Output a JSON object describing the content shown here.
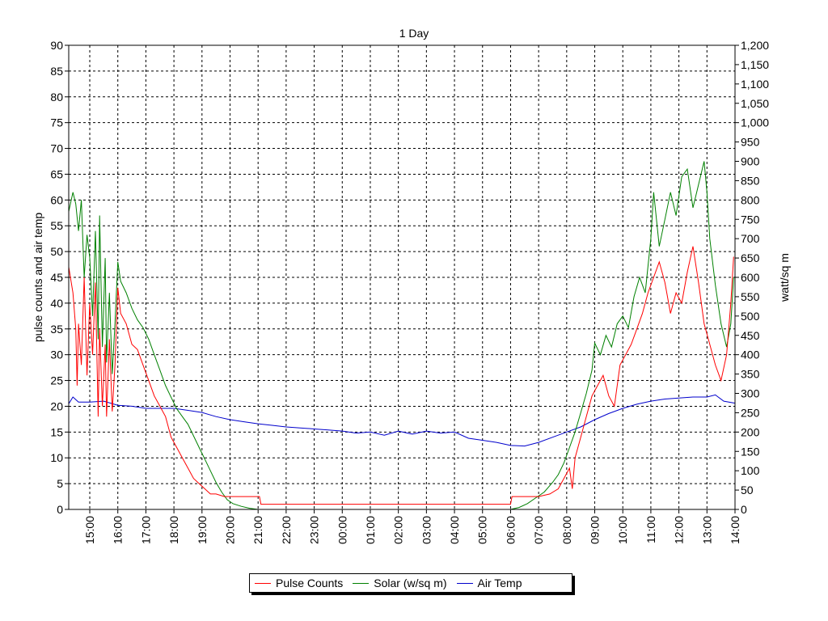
{
  "chart_data": {
    "type": "line",
    "title": "1 Day",
    "ylabel": "pulse counts and air temp",
    "y2label": "watt/sq m",
    "ylim": [
      0,
      90
    ],
    "y2lim": [
      0,
      1200
    ],
    "yticks": [
      "0",
      "5",
      "10",
      "15",
      "20",
      "25",
      "30",
      "35",
      "40",
      "45",
      "50",
      "55",
      "60",
      "65",
      "70",
      "75",
      "80",
      "85",
      "90"
    ],
    "y2ticks": [
      "0",
      "50",
      "100",
      "150",
      "200",
      "250",
      "300",
      "350",
      "400",
      "450",
      "500",
      "550",
      "600",
      "650",
      "700",
      "750",
      "800",
      "850",
      "900",
      "950",
      "1,000",
      "1,050",
      "1,100",
      "1,150",
      "1,200"
    ],
    "xlim": [
      14.25,
      38.0
    ],
    "xticks": [
      {
        "x": 15,
        "label": "15:00"
      },
      {
        "x": 16,
        "label": "16:00"
      },
      {
        "x": 17,
        "label": "17:00"
      },
      {
        "x": 18,
        "label": "18:00"
      },
      {
        "x": 19,
        "label": "19:00"
      },
      {
        "x": 20,
        "label": "20:00"
      },
      {
        "x": 21,
        "label": "21:00"
      },
      {
        "x": 22,
        "label": "22:00"
      },
      {
        "x": 23,
        "label": "23:00"
      },
      {
        "x": 24,
        "label": "00:00"
      },
      {
        "x": 25,
        "label": "01:00"
      },
      {
        "x": 26,
        "label": "02:00"
      },
      {
        "x": 27,
        "label": "03:00"
      },
      {
        "x": 28,
        "label": "04:00"
      },
      {
        "x": 29,
        "label": "05:00"
      },
      {
        "x": 30,
        "label": "06:00"
      },
      {
        "x": 31,
        "label": "07:00"
      },
      {
        "x": 32,
        "label": "08:00"
      },
      {
        "x": 33,
        "label": "09:00"
      },
      {
        "x": 34,
        "label": "10:00"
      },
      {
        "x": 35,
        "label": "11:00"
      },
      {
        "x": 36,
        "label": "12:00"
      },
      {
        "x": 37,
        "label": "13:00"
      },
      {
        "x": 38,
        "label": "14:00"
      }
    ],
    "grid": true,
    "legend_position": "bottom",
    "series": [
      {
        "name": "Pulse Counts",
        "color": "#ff0000",
        "axis": "left",
        "points": [
          [
            14.25,
            47
          ],
          [
            14.4,
            42
          ],
          [
            14.5,
            35
          ],
          [
            14.55,
            24
          ],
          [
            14.6,
            36
          ],
          [
            14.7,
            28
          ],
          [
            14.8,
            45
          ],
          [
            14.9,
            26
          ],
          [
            15.0,
            40
          ],
          [
            15.1,
            30
          ],
          [
            15.2,
            44
          ],
          [
            15.3,
            18
          ],
          [
            15.35,
            35
          ],
          [
            15.45,
            20
          ],
          [
            15.55,
            32
          ],
          [
            15.6,
            18
          ],
          [
            15.7,
            33
          ],
          [
            15.8,
            19
          ],
          [
            15.9,
            28
          ],
          [
            16.0,
            43
          ],
          [
            16.1,
            38
          ],
          [
            16.3,
            36
          ],
          [
            16.5,
            32
          ],
          [
            16.7,
            31
          ],
          [
            16.9,
            28
          ],
          [
            17.1,
            25
          ],
          [
            17.3,
            22
          ],
          [
            17.5,
            20
          ],
          [
            17.7,
            18
          ],
          [
            17.9,
            14
          ],
          [
            18.1,
            12
          ],
          [
            18.3,
            10
          ],
          [
            18.5,
            8
          ],
          [
            18.7,
            6
          ],
          [
            18.9,
            5
          ],
          [
            19.1,
            4
          ],
          [
            19.3,
            3
          ],
          [
            19.5,
            3
          ],
          [
            19.8,
            2.5
          ],
          [
            20.2,
            2.5
          ],
          [
            20.6,
            2.5
          ],
          [
            21.05,
            2.5
          ],
          [
            21.1,
            1
          ],
          [
            22,
            1
          ],
          [
            23,
            1
          ],
          [
            24,
            1
          ],
          [
            25,
            1
          ],
          [
            26,
            1
          ],
          [
            27,
            1
          ],
          [
            28,
            1
          ],
          [
            29,
            1
          ],
          [
            30,
            1
          ],
          [
            30.05,
            2.5
          ],
          [
            30.5,
            2.5
          ],
          [
            31.0,
            2.5
          ],
          [
            31.4,
            3
          ],
          [
            31.7,
            4
          ],
          [
            31.9,
            6
          ],
          [
            32.1,
            8
          ],
          [
            32.2,
            4
          ],
          [
            32.3,
            10
          ],
          [
            32.5,
            14
          ],
          [
            32.7,
            18
          ],
          [
            32.9,
            22
          ],
          [
            33.1,
            24
          ],
          [
            33.3,
            26
          ],
          [
            33.5,
            22
          ],
          [
            33.7,
            20
          ],
          [
            33.9,
            28
          ],
          [
            34.1,
            30
          ],
          [
            34.3,
            32
          ],
          [
            34.5,
            35
          ],
          [
            34.7,
            38
          ],
          [
            34.9,
            42
          ],
          [
            35.1,
            45
          ],
          [
            35.3,
            48
          ],
          [
            35.5,
            44
          ],
          [
            35.7,
            38
          ],
          [
            35.9,
            42
          ],
          [
            36.1,
            40
          ],
          [
            36.3,
            46
          ],
          [
            36.5,
            51
          ],
          [
            36.7,
            44
          ],
          [
            36.9,
            36
          ],
          [
            37.1,
            32
          ],
          [
            37.3,
            28
          ],
          [
            37.5,
            25
          ],
          [
            37.7,
            30
          ],
          [
            37.85,
            40
          ],
          [
            37.95,
            49
          ]
        ]
      },
      {
        "name": "Solar (w/sq m)",
        "color": "#008000",
        "axis": "right",
        "points": [
          [
            14.25,
            770
          ],
          [
            14.4,
            820
          ],
          [
            14.5,
            790
          ],
          [
            14.6,
            720
          ],
          [
            14.7,
            800
          ],
          [
            14.8,
            600
          ],
          [
            14.9,
            710
          ],
          [
            15.0,
            650
          ],
          [
            15.1,
            500
          ],
          [
            15.2,
            720
          ],
          [
            15.3,
            440
          ],
          [
            15.35,
            760
          ],
          [
            15.45,
            420
          ],
          [
            15.55,
            650
          ],
          [
            15.6,
            380
          ],
          [
            15.7,
            560
          ],
          [
            15.8,
            350
          ],
          [
            15.9,
            480
          ],
          [
            16.0,
            640
          ],
          [
            16.1,
            590
          ],
          [
            16.3,
            560
          ],
          [
            16.5,
            520
          ],
          [
            16.7,
            490
          ],
          [
            16.9,
            470
          ],
          [
            17.1,
            440
          ],
          [
            17.3,
            400
          ],
          [
            17.5,
            360
          ],
          [
            17.7,
            320
          ],
          [
            17.9,
            290
          ],
          [
            18.1,
            260
          ],
          [
            18.3,
            240
          ],
          [
            18.5,
            220
          ],
          [
            18.7,
            190
          ],
          [
            18.9,
            160
          ],
          [
            19.1,
            130
          ],
          [
            19.3,
            100
          ],
          [
            19.5,
            70
          ],
          [
            19.7,
            45
          ],
          [
            19.9,
            25
          ],
          [
            20.1,
            15
          ],
          [
            20.4,
            8
          ],
          [
            20.7,
            3
          ],
          [
            21.0,
            0
          ],
          [
            22,
            0
          ],
          [
            24,
            0
          ],
          [
            26,
            0
          ],
          [
            28,
            0
          ],
          [
            30,
            0
          ],
          [
            30.3,
            5
          ],
          [
            30.6,
            15
          ],
          [
            30.9,
            30
          ],
          [
            31.2,
            45
          ],
          [
            31.5,
            70
          ],
          [
            31.7,
            90
          ],
          [
            31.9,
            120
          ],
          [
            32.1,
            160
          ],
          [
            32.3,
            200
          ],
          [
            32.5,
            250
          ],
          [
            32.7,
            300
          ],
          [
            32.9,
            360
          ],
          [
            33.0,
            430
          ],
          [
            33.2,
            400
          ],
          [
            33.4,
            450
          ],
          [
            33.6,
            420
          ],
          [
            33.8,
            480
          ],
          [
            34.0,
            500
          ],
          [
            34.2,
            470
          ],
          [
            34.4,
            550
          ],
          [
            34.6,
            600
          ],
          [
            34.8,
            560
          ],
          [
            35.0,
            700
          ],
          [
            35.1,
            820
          ],
          [
            35.3,
            680
          ],
          [
            35.5,
            750
          ],
          [
            35.7,
            820
          ],
          [
            35.9,
            760
          ],
          [
            36.1,
            860
          ],
          [
            36.3,
            880
          ],
          [
            36.5,
            780
          ],
          [
            36.7,
            840
          ],
          [
            36.9,
            900
          ],
          [
            37.0,
            820
          ],
          [
            37.1,
            700
          ],
          [
            37.3,
            580
          ],
          [
            37.5,
            480
          ],
          [
            37.7,
            420
          ],
          [
            37.85,
            480
          ],
          [
            37.95,
            600
          ]
        ]
      },
      {
        "name": "Air Temp",
        "color": "#0000cc",
        "axis": "left",
        "points": [
          [
            14.25,
            20.5
          ],
          [
            14.4,
            21.8
          ],
          [
            14.6,
            20.8
          ],
          [
            15.0,
            20.8
          ],
          [
            15.5,
            21
          ],
          [
            16.0,
            20.2
          ],
          [
            16.5,
            20.0
          ],
          [
            17.0,
            19.6
          ],
          [
            17.5,
            19.6
          ],
          [
            18.0,
            19.6
          ],
          [
            18.5,
            19.2
          ],
          [
            19.0,
            18.8
          ],
          [
            19.5,
            18.0
          ],
          [
            20.0,
            17.4
          ],
          [
            20.5,
            17.0
          ],
          [
            21.0,
            16.6
          ],
          [
            21.5,
            16.3
          ],
          [
            22.0,
            16.0
          ],
          [
            22.5,
            15.8
          ],
          [
            23.0,
            15.6
          ],
          [
            23.5,
            15.4
          ],
          [
            24.0,
            15.2
          ],
          [
            24.5,
            14.8
          ],
          [
            25.0,
            15.0
          ],
          [
            25.5,
            14.4
          ],
          [
            26.0,
            15.2
          ],
          [
            26.5,
            14.6
          ],
          [
            27.0,
            15.2
          ],
          [
            27.5,
            14.8
          ],
          [
            28.0,
            15.0
          ],
          [
            28.5,
            13.8
          ],
          [
            29.0,
            13.4
          ],
          [
            29.5,
            13.0
          ],
          [
            30.0,
            12.4
          ],
          [
            30.5,
            12.3
          ],
          [
            31.0,
            13.0
          ],
          [
            31.5,
            14.0
          ],
          [
            32.0,
            15.0
          ],
          [
            32.5,
            16.0
          ],
          [
            33.0,
            17.4
          ],
          [
            33.5,
            18.6
          ],
          [
            34.0,
            19.6
          ],
          [
            34.5,
            20.4
          ],
          [
            35.0,
            21.0
          ],
          [
            35.5,
            21.4
          ],
          [
            36.0,
            21.6
          ],
          [
            36.5,
            21.8
          ],
          [
            37.0,
            21.8
          ],
          [
            37.3,
            22.2
          ],
          [
            37.6,
            21.0
          ],
          [
            38.0,
            20.6
          ]
        ]
      }
    ]
  }
}
